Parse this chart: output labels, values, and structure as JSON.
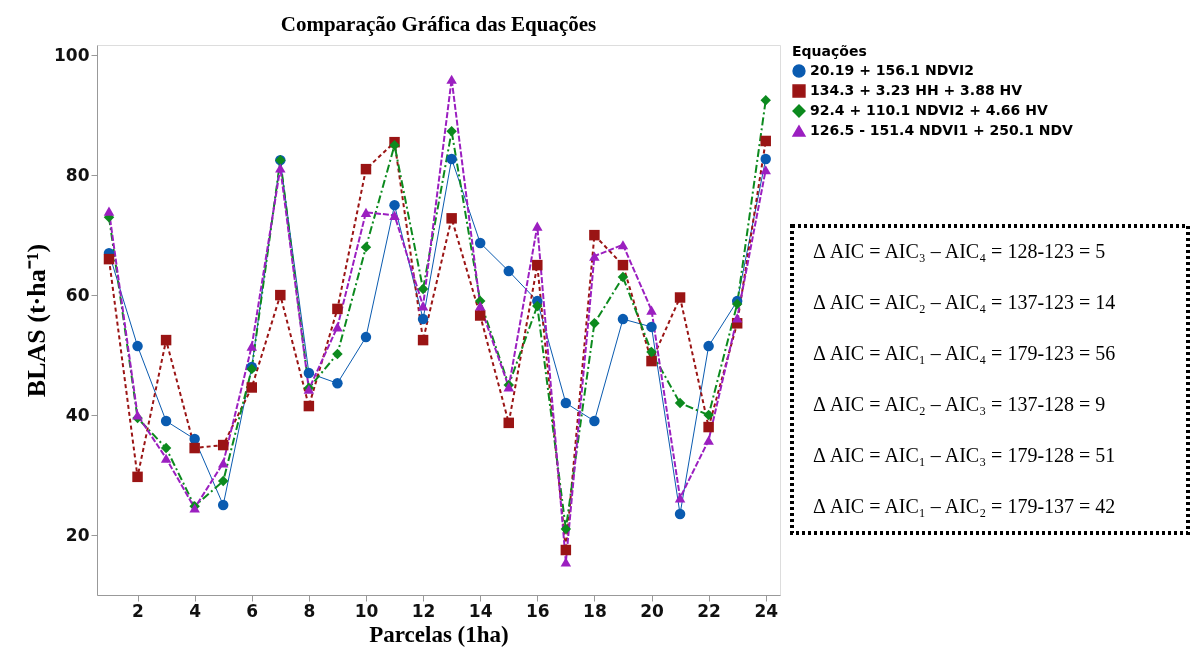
{
  "chart_data": {
    "type": "line",
    "title": "Comparação Gráfica das Equações",
    "xlabel": "Parcelas (1ha)",
    "ylabel": "BLAS (t·ha⁻¹)",
    "legend_title": "Equações",
    "legend": "top right",
    "grid": false,
    "x": [
      1,
      2,
      3,
      4,
      5,
      6,
      7,
      8,
      9,
      10,
      11,
      12,
      13,
      14,
      15,
      16,
      17,
      18,
      19,
      20,
      21,
      22,
      23,
      24
    ],
    "xlim": [
      0.58,
      24.5
    ],
    "xticks": [
      2,
      4,
      6,
      8,
      10,
      12,
      14,
      16,
      18,
      20,
      22,
      24
    ],
    "ylim": [
      10,
      101.7
    ],
    "yticks": [
      20,
      40,
      60,
      80,
      100
    ],
    "series": [
      {
        "name": "20.19 + 156.1 NDVI2",
        "color": "#0a5bb0",
        "marker": "circle",
        "line_style": "solid",
        "values": [
          67,
          51.5,
          39,
          36,
          25,
          48,
          82.5,
          47,
          45.3,
          53,
          75,
          56,
          82.7,
          68.7,
          64,
          59,
          42,
          39,
          56,
          54.7,
          23.5,
          51.5,
          59,
          82.7
        ]
      },
      {
        "name": "134.3 + 3.23 HH + 3.88 HV",
        "color": "#9a1414",
        "marker": "square",
        "line_style": "dashed",
        "values": [
          66,
          29.7,
          52.5,
          34.5,
          35,
          44.6,
          60,
          41.5,
          57.7,
          81,
          85.5,
          52.5,
          72.8,
          56.6,
          38.7,
          65,
          17.5,
          70,
          65,
          49,
          59.6,
          38,
          55.3,
          85.7
        ]
      },
      {
        "name": "92.4 + 110.1 NDVI2 + 4.66 HV",
        "color": "#0c8a1e",
        "marker": "diamond",
        "line_style": "dashed",
        "values": [
          73,
          39.5,
          34.5,
          24.8,
          29,
          47.7,
          82.5,
          44.5,
          50.2,
          68,
          85,
          61,
          87.3,
          59,
          45,
          58.2,
          21,
          55.3,
          63,
          50.5,
          42,
          40,
          58.5,
          92.5
        ]
      },
      {
        "name": "126.5 - 151.4 NDVI1 + 250.1 NDV",
        "color": "#9b1fc0",
        "marker": "triangle",
        "line_style": "dashed",
        "values": [
          74,
          40,
          32.8,
          24.5,
          32,
          51.5,
          81.2,
          44.3,
          54.7,
          73.8,
          73.3,
          58.2,
          96,
          58.2,
          44.7,
          71.5,
          15.5,
          66.5,
          68.4,
          57.5,
          26.2,
          35.8,
          56.2,
          80.9
        ]
      }
    ],
    "annotations": [
      "Δ AIC = AIC₃ – AIC₄ = 128-123 = 5",
      "Δ AIC = AIC₂ – AIC₄ = 137-123 = 14",
      "Δ AIC = AIC₁ – AIC₄ = 179-123 = 56",
      "Δ AIC = AIC₂ – AIC₃ = 137-128 = 9",
      "Δ AIC = AIC₁ – AIC₃ = 179-128 = 51",
      "Δ AIC = AIC₁ – AIC₂ = 179-137 = 42"
    ]
  }
}
